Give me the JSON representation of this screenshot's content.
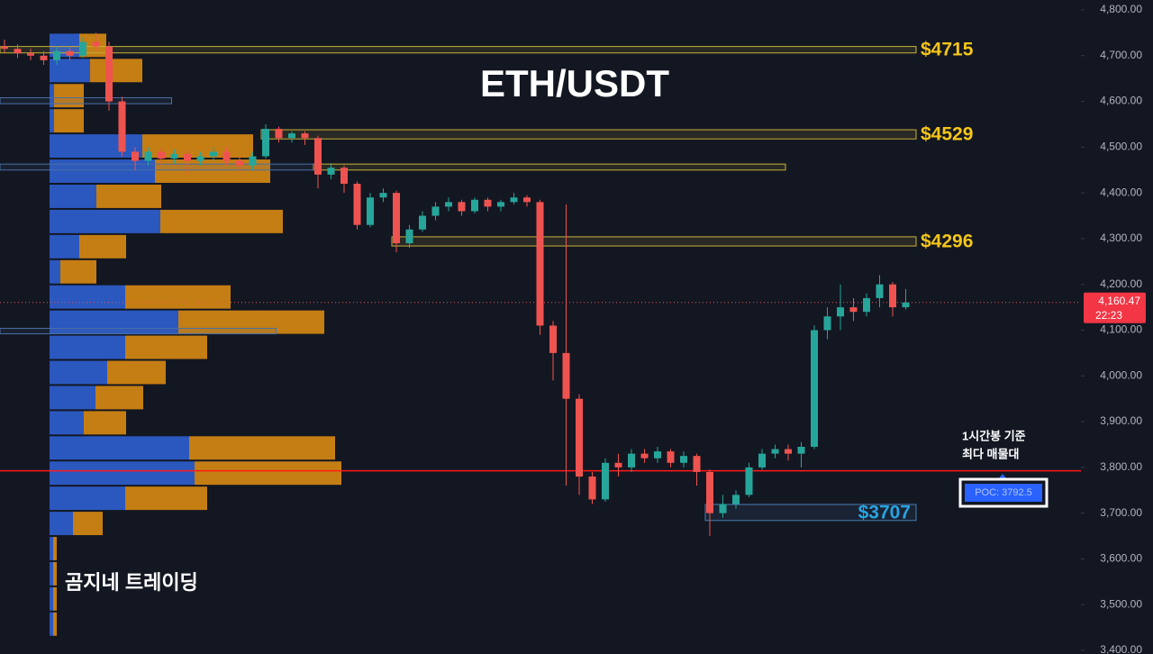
{
  "chart_data": {
    "type": "candlestick",
    "title": "ETH/USDT",
    "watermark": "곰지네 트레이딩",
    "annotation": [
      "1시간봉 기준",
      "최다 매물대"
    ],
    "ylim": [
      3400,
      4800
    ],
    "yticks": [
      {
        "value": 3400,
        "label": "3,400.00"
      },
      {
        "value": 3500,
        "label": "3,500.00"
      },
      {
        "value": 3600,
        "label": "3,600.00"
      },
      {
        "value": 3700,
        "label": "3,700.00"
      },
      {
        "value": 3800,
        "label": "3,800.00"
      },
      {
        "value": 3900,
        "label": "3,900.00"
      },
      {
        "value": 4000,
        "label": "4,000.00"
      },
      {
        "value": 4100,
        "label": "4,100.00"
      },
      {
        "value": 4200,
        "label": "4,200.00"
      },
      {
        "value": 4300,
        "label": "4,300.00"
      },
      {
        "value": 4400,
        "label": "4,400.00"
      },
      {
        "value": 4500,
        "label": "4,500.00"
      },
      {
        "value": 4600,
        "label": "4,600.00"
      },
      {
        "value": 4700,
        "label": "4,700.00"
      },
      {
        "value": 4800,
        "label": "4,800.00"
      }
    ],
    "up_color": "#26a69a",
    "down_color": "#ef5350",
    "open": [
      4720,
      4715,
      4705,
      4700,
      4690,
      4710,
      4700,
      4730,
      4720,
      4600,
      4490,
      4470,
      4490,
      4475,
      4485,
      4470,
      4480,
      4490,
      4470,
      4460,
      4480,
      4540,
      4520,
      4530,
      4520,
      4440,
      4455,
      4420,
      4330,
      4390,
      4400,
      4290,
      4320,
      4350,
      4370,
      4380,
      4360,
      4385,
      4370,
      4380,
      4390,
      4380,
      4110,
      4050,
      3950,
      3780,
      3730,
      3810,
      3800,
      3830,
      3820,
      3835,
      3810,
      3825,
      3790,
      3700,
      3720,
      3740,
      3800,
      3830,
      3840,
      3830,
      3845,
      4100,
      4130,
      4150,
      4140,
      4170,
      4200,
      4150
    ],
    "high": [
      4735,
      4725,
      4715,
      4710,
      4720,
      4720,
      4740,
      4750,
      4730,
      4610,
      4500,
      4500,
      4500,
      4495,
      4495,
      4490,
      4500,
      4500,
      4480,
      4490,
      4550,
      4545,
      4535,
      4535,
      4525,
      4465,
      4460,
      4425,
      4400,
      4410,
      4405,
      4330,
      4360,
      4380,
      4390,
      4385,
      4390,
      4390,
      4385,
      4400,
      4395,
      4385,
      4120,
      4375,
      3960,
      3790,
      3820,
      3830,
      3840,
      3840,
      3845,
      3840,
      3835,
      3830,
      3795,
      3740,
      3750,
      3810,
      3840,
      3850,
      3850,
      3855,
      4110,
      4150,
      4200,
      4170,
      4180,
      4220,
      4205,
      4190
    ],
    "low": [
      4705,
      4695,
      4690,
      4680,
      4680,
      4690,
      4695,
      4710,
      4580,
      4480,
      4450,
      4460,
      4460,
      4465,
      4440,
      4460,
      4470,
      4460,
      4450,
      4450,
      4475,
      4510,
      4510,
      4505,
      4410,
      4430,
      4400,
      4320,
      4325,
      4380,
      4270,
      4280,
      4315,
      4340,
      4360,
      4350,
      4355,
      4360,
      4360,
      4375,
      4370,
      4090,
      3990,
      3760,
      3740,
      3720,
      3725,
      3780,
      3790,
      3810,
      3810,
      3800,
      3800,
      3760,
      3650,
      3690,
      3710,
      3735,
      3795,
      3820,
      3815,
      3800,
      3840,
      4080,
      4100,
      4120,
      4130,
      4150,
      4130,
      4145
    ],
    "close": [
      4715,
      4705,
      4700,
      4690,
      4710,
      4700,
      4730,
      4720,
      4600,
      4490,
      4470,
      4490,
      4475,
      4485,
      4470,
      4480,
      4490,
      4470,
      4460,
      4480,
      4540,
      4520,
      4530,
      4520,
      4440,
      4455,
      4420,
      4330,
      4390,
      4400,
      4290,
      4320,
      4350,
      4370,
      4380,
      4360,
      4385,
      4370,
      4380,
      4390,
      4380,
      4110,
      4050,
      3950,
      3780,
      3730,
      3810,
      3800,
      3830,
      3820,
      3835,
      3810,
      3825,
      3790,
      3700,
      3720,
      3740,
      3800,
      3830,
      3840,
      3830,
      3845,
      4100,
      4130,
      4150,
      4140,
      4170,
      4200,
      4150,
      4160.47
    ],
    "last_price": 4160.47,
    "last_price_label": "4,160.47",
    "countdown": "22:23",
    "poc": 3792.5,
    "poc_label": "POC: 3792.5",
    "zones": [
      {
        "label": "$4715",
        "low": 4706,
        "high": 4720,
        "start": 0,
        "end": 70,
        "color": "#c9b037"
      },
      {
        "label": "$4529",
        "low": 4518,
        "high": 4538,
        "start": 20,
        "end": 70,
        "color": "#c9b037"
      },
      {
        "low": 4450,
        "high": 4463,
        "start": 24,
        "end": 60,
        "color": "#c9b037"
      },
      {
        "label": "$4296",
        "low": 4284,
        "high": 4304,
        "start": 30,
        "end": 70,
        "color": "#c9b037"
      },
      {
        "label": "$3707",
        "low": 3684,
        "high": 3719,
        "start": 54,
        "end": 70,
        "color": "#4a7fb5"
      },
      {
        "low": 4595,
        "high": 4608,
        "start": 0,
        "end": 13,
        "color": "#4a6fa5"
      },
      {
        "low": 4450,
        "high": 4463,
        "start": 0,
        "end": 24,
        "color": "#4a6fa5"
      },
      {
        "low": 4092,
        "high": 4104,
        "start": 0,
        "end": 21,
        "color": "#4a6fa5"
      }
    ],
    "profile": {
      "bins": [
        4750,
        4695,
        4640,
        4585,
        4530,
        4475,
        4420,
        4365,
        4310,
        4255,
        4200,
        4145,
        4090,
        4035,
        3980,
        3925,
        3870,
        3815,
        3760,
        3705,
        3650,
        3595,
        3540,
        3485,
        3430
      ],
      "series": [
        {
          "name": "buy",
          "color": "#2f5fd0",
          "values": [
            33,
            45,
            5,
            5,
            103,
            117,
            52,
            123,
            33,
            12,
            84,
            143,
            84,
            64,
            51,
            38,
            155,
            161,
            84,
            26,
            4,
            4,
            4,
            4
          ]
        },
        {
          "name": "sell",
          "color": "#d98a12",
          "values": [
            30,
            58,
            33,
            33,
            123,
            128,
            72,
            136,
            52,
            40,
            117,
            162,
            91,
            65,
            53,
            47,
            162,
            163,
            91,
            33,
            4,
            4,
            4,
            4
          ]
        }
      ]
    }
  }
}
